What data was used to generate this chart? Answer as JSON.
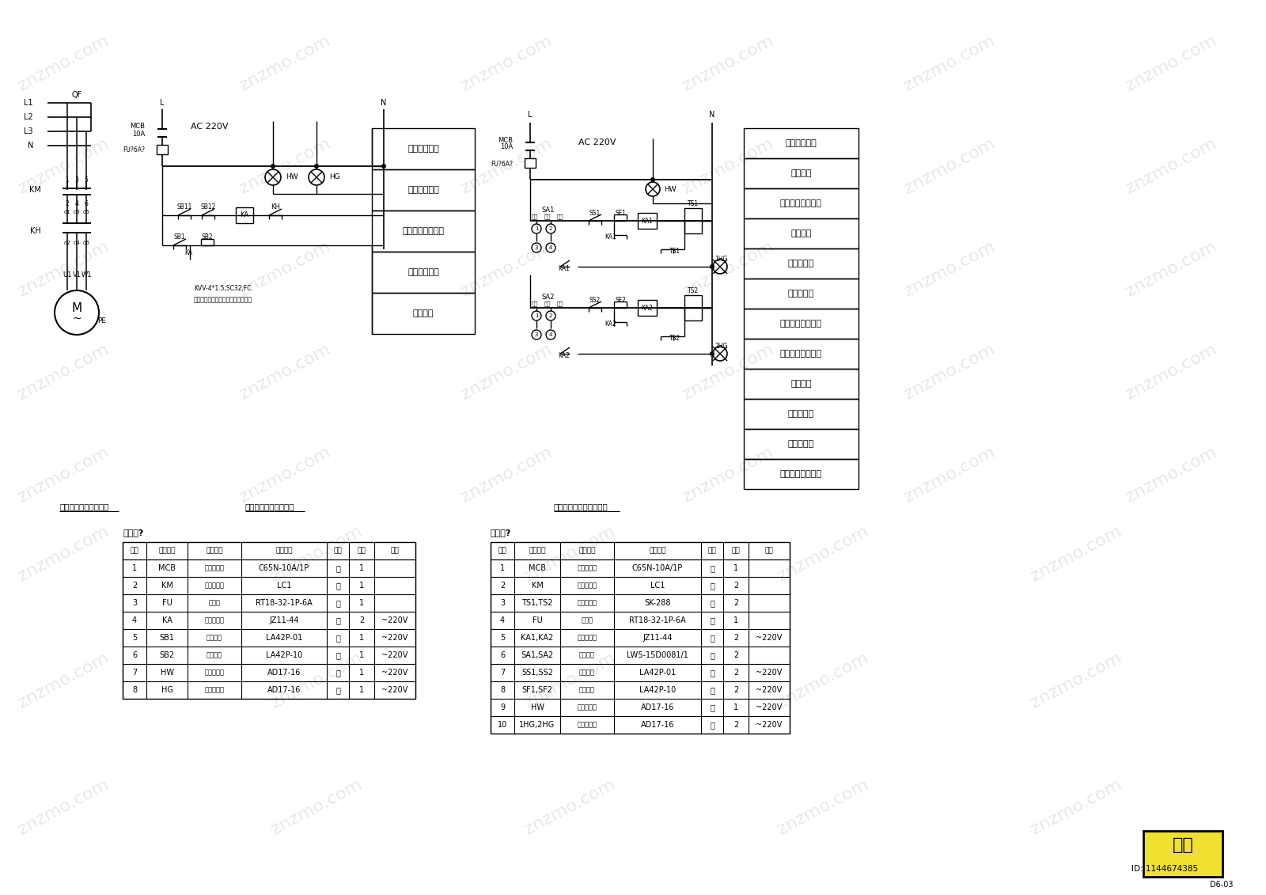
{
  "bg_color": "#ffffff",
  "diagram1_label": "潜水泵控制一次接线图",
  "diagram2_label": "潜水泵控制二次接线图",
  "diagram3_label": "景观照明控制二次接线图",
  "table1_title": "设备表?",
  "table1_headers": [
    "序号",
    "设备符号",
    "设备名称",
    "型号规格",
    "单位",
    "数量",
    "备注"
  ],
  "table1_rows": [
    [
      "1",
      "MCB",
      "低压断路器",
      "C65N-10A/1P",
      "个",
      "1",
      ""
    ],
    [
      "2",
      "KM",
      "交流接触器",
      "LC1",
      "个",
      "1",
      ""
    ],
    [
      "3",
      "FU",
      "熔断器",
      "RT18-32-1P-6A",
      "个",
      "1",
      ""
    ],
    [
      "4",
      "KA",
      "中间继电器",
      "JZ11-44",
      "个",
      "2",
      "~220V"
    ],
    [
      "5",
      "SB1",
      "停止按钮",
      "LA42P-01",
      "个",
      "1",
      "~220V"
    ],
    [
      "6",
      "SB2",
      "启动按钮",
      "LA42P-10",
      "个",
      "1",
      "~220V"
    ],
    [
      "7",
      "HW",
      "白色信号灯",
      "AD17-16",
      "个",
      "1",
      "~220V"
    ],
    [
      "8",
      "HG",
      "绿色信号灯",
      "AD17-16",
      "个",
      "1",
      "~220V"
    ]
  ],
  "table2_title": "设备表?",
  "table2_headers": [
    "序号",
    "设备符号",
    "设备名称",
    "型号规格",
    "单位",
    "数量",
    "备注"
  ],
  "table2_rows": [
    [
      "1",
      "MCB",
      "低压断路器",
      "C65N-10A/1P",
      "个",
      "1",
      ""
    ],
    [
      "2",
      "KM",
      "交流接触器",
      "LC1",
      "个",
      "2",
      ""
    ],
    [
      "3",
      "TS1,TS2",
      "智能时控仪",
      "SK-288",
      "个",
      "2",
      ""
    ],
    [
      "4",
      "FU",
      "熔断器",
      "RT18-32-1P-6A",
      "个",
      "1",
      ""
    ],
    [
      "5",
      "KA1,KA2",
      "中间继电器",
      "JZ11-44",
      "个",
      "2",
      "~220V"
    ],
    [
      "6",
      "SA1,SA2",
      "旋转开关",
      "LW5-15D0081/1",
      "个",
      "2",
      ""
    ],
    [
      "7",
      "SS1,SS2",
      "停止按钮",
      "LA42P-01",
      "个",
      "2",
      "~220V"
    ],
    [
      "8",
      "SF1,SF2",
      "启动按钮",
      "LA42P-10",
      "个",
      "2",
      "~220V"
    ],
    [
      "9",
      "HW",
      "白色信号灯",
      "AD17-16",
      "个",
      "1",
      "~220V"
    ],
    [
      "10",
      "1HG,2HG",
      "绿色信号灯",
      "AD17-16",
      "个",
      "2",
      "~220V"
    ]
  ],
  "box_labels_diag2": [
    "电源及熔断器",
    "控制电源显示",
    "水泵远程按钮控制",
    "水泵手动控制",
    "运行指示"
  ],
  "box_labels_diag3": [
    "电源及熔断器",
    "电源指示",
    "全夜亮时间控制器",
    "转换开关",
    "手控全夜亮",
    "时控全夜亮",
    "全夜亮运行指示灯",
    "半夜亮时间控制器",
    "转换开关",
    "手控半夜亮",
    "时控半夜亮",
    "半夜亮运行指示灯"
  ]
}
